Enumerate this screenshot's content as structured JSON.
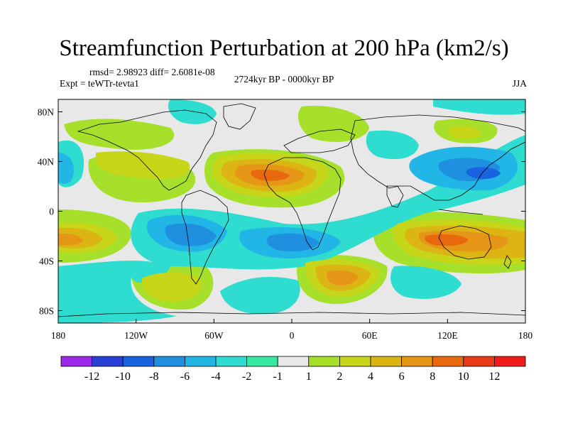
{
  "title": "Streamfunction Perturbation at 200 hPa (km2/s)",
  "stats_line": "rmsd= 2.98923 diff= 2.6081e-08",
  "experiment": "Expt = teWTr-tevta1",
  "period": "2724kyr BP - 0000kyr BP",
  "season": "JJA",
  "map": {
    "lat_labels": [
      "80N",
      "40N",
      "0",
      "40S",
      "80S"
    ],
    "lat_values": [
      80,
      40,
      0,
      -40,
      -80
    ],
    "lon_labels": [
      "180",
      "120W",
      "60W",
      "0",
      "60E",
      "120E",
      "180"
    ],
    "lon_values": [
      -180,
      -120,
      -60,
      0,
      60,
      120,
      180
    ]
  },
  "colorbar": {
    "labels": [
      "-12",
      "-10",
      "-8",
      "-6",
      "-4",
      "-2",
      "-1",
      "1",
      "2",
      "4",
      "6",
      "8",
      "10",
      "12"
    ],
    "colors": [
      "#9c28e8",
      "#2a3fd6",
      "#1a63e0",
      "#1f90e0",
      "#21b6e6",
      "#2fdcd0",
      "#38e8a0",
      "#e8e8e8",
      "#a6e02a",
      "#c8d61a",
      "#dcb414",
      "#e69616",
      "#e8680e",
      "#e83a14",
      "#f01c1c"
    ]
  },
  "field_levels": [
    "#2fdcd0",
    "#21b6e6",
    "#1f90e0",
    "#1a63e0",
    "#a6e02a",
    "#c8d61a",
    "#dcb414",
    "#e69616",
    "#e8680e"
  ]
}
